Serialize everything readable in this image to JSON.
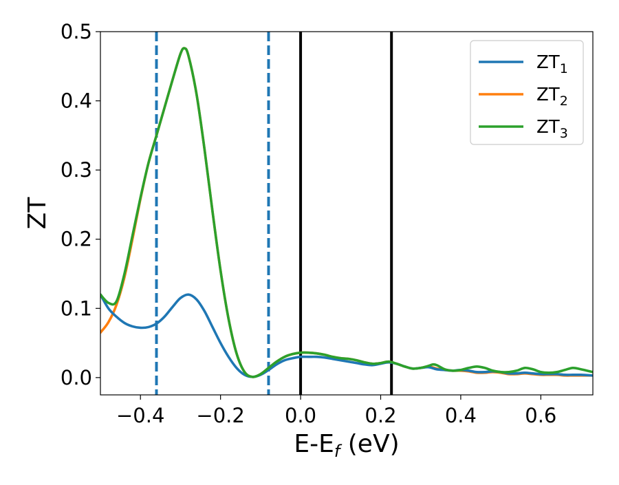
{
  "chart_data": {
    "type": "line",
    "xlabel": "E-E",
    "xlabel_sub": "f",
    "xlabel_unit": " (eV)",
    "ylabel": "ZT",
    "xlim": [
      -0.5,
      0.73
    ],
    "ylim": [
      -0.025,
      0.5
    ],
    "xticks": [
      -0.4,
      -0.2,
      0.0,
      0.2,
      0.4,
      0.6
    ],
    "xtick_labels": [
      "−0.4",
      "−0.2",
      "0.0",
      "0.2",
      "0.4",
      "0.6"
    ],
    "yticks": [
      0.0,
      0.1,
      0.2,
      0.3,
      0.4,
      0.5
    ],
    "ytick_labels": [
      "0.0",
      "0.1",
      "0.2",
      "0.3",
      "0.4",
      "0.5"
    ],
    "grid": false,
    "legend_position": "top-right",
    "vertical_lines": [
      {
        "x": -0.36,
        "style": "dashed",
        "color": "#1f77b4"
      },
      {
        "x": -0.08,
        "style": "dashed",
        "color": "#1f77b4"
      },
      {
        "x": 0.0,
        "style": "solid",
        "color": "#000000"
      },
      {
        "x": 0.227,
        "style": "solid",
        "color": "#000000"
      }
    ],
    "series": [
      {
        "name": "ZT",
        "name_sub": "1",
        "color": "#1f77b4",
        "x": [
          -0.5,
          -0.48,
          -0.46,
          -0.44,
          -0.42,
          -0.4,
          -0.38,
          -0.36,
          -0.34,
          -0.32,
          -0.3,
          -0.28,
          -0.26,
          -0.24,
          -0.22,
          -0.2,
          -0.18,
          -0.16,
          -0.14,
          -0.12,
          -0.1,
          -0.08,
          -0.06,
          -0.04,
          -0.02,
          0.0,
          0.02,
          0.04,
          0.06,
          0.08,
          0.1,
          0.12,
          0.14,
          0.16,
          0.18,
          0.2,
          0.22,
          0.24,
          0.26,
          0.28,
          0.3,
          0.32,
          0.34,
          0.36,
          0.38,
          0.4,
          0.42,
          0.44,
          0.46,
          0.48,
          0.5,
          0.52,
          0.54,
          0.56,
          0.58,
          0.6,
          0.62,
          0.64,
          0.66,
          0.68,
          0.7,
          0.73
        ],
        "y": [
          0.12,
          0.1,
          0.088,
          0.079,
          0.074,
          0.072,
          0.073,
          0.078,
          0.088,
          0.102,
          0.115,
          0.12,
          0.113,
          0.096,
          0.073,
          0.05,
          0.03,
          0.014,
          0.004,
          0.001,
          0.004,
          0.011,
          0.019,
          0.025,
          0.028,
          0.03,
          0.03,
          0.03,
          0.029,
          0.027,
          0.025,
          0.023,
          0.021,
          0.019,
          0.018,
          0.02,
          0.022,
          0.02,
          0.016,
          0.013,
          0.014,
          0.015,
          0.012,
          0.011,
          0.01,
          0.011,
          0.01,
          0.008,
          0.008,
          0.009,
          0.008,
          0.006,
          0.006,
          0.007,
          0.006,
          0.005,
          0.005,
          0.005,
          0.004,
          0.004,
          0.004,
          0.003
        ]
      },
      {
        "name": "ZT",
        "name_sub": "2",
        "color": "#ff7f0e",
        "x": [
          -0.5,
          -0.48,
          -0.46,
          -0.44,
          -0.42,
          -0.4,
          -0.38,
          -0.36,
          -0.34,
          -0.32,
          -0.3,
          -0.29,
          -0.28,
          -0.26,
          -0.24,
          -0.22,
          -0.2,
          -0.18,
          -0.16,
          -0.14,
          -0.12,
          -0.1,
          -0.08,
          -0.06,
          -0.04,
          -0.02,
          0.0,
          0.02,
          0.04,
          0.06,
          0.08,
          0.1,
          0.12,
          0.14,
          0.16,
          0.18,
          0.2,
          0.22,
          0.24,
          0.26,
          0.28,
          0.3,
          0.32,
          0.34,
          0.36,
          0.38,
          0.4,
          0.42,
          0.44,
          0.46,
          0.48,
          0.5,
          0.52,
          0.54,
          0.56,
          0.58,
          0.6,
          0.62,
          0.64,
          0.66,
          0.68,
          0.7,
          0.73
        ],
        "y": [
          0.065,
          0.08,
          0.105,
          0.145,
          0.2,
          0.258,
          0.31,
          0.35,
          0.39,
          0.43,
          0.468,
          0.476,
          0.465,
          0.41,
          0.33,
          0.24,
          0.155,
          0.085,
          0.035,
          0.008,
          0.001,
          0.005,
          0.014,
          0.023,
          0.03,
          0.034,
          0.036,
          0.036,
          0.035,
          0.033,
          0.03,
          0.028,
          0.027,
          0.025,
          0.022,
          0.02,
          0.021,
          0.023,
          0.02,
          0.016,
          0.013,
          0.014,
          0.016,
          0.013,
          0.011,
          0.01,
          0.01,
          0.009,
          0.007,
          0.007,
          0.008,
          0.007,
          0.005,
          0.005,
          0.006,
          0.005,
          0.004,
          0.004,
          0.004,
          0.003,
          0.003,
          0.003,
          0.003
        ]
      },
      {
        "name": "ZT",
        "name_sub": "3",
        "color": "#2ca02c",
        "x": [
          -0.5,
          -0.48,
          -0.46,
          -0.44,
          -0.42,
          -0.4,
          -0.38,
          -0.36,
          -0.34,
          -0.32,
          -0.3,
          -0.29,
          -0.28,
          -0.26,
          -0.24,
          -0.22,
          -0.2,
          -0.18,
          -0.16,
          -0.14,
          -0.12,
          -0.1,
          -0.08,
          -0.06,
          -0.04,
          -0.02,
          0.0,
          0.02,
          0.04,
          0.06,
          0.08,
          0.1,
          0.12,
          0.14,
          0.16,
          0.18,
          0.2,
          0.22,
          0.24,
          0.26,
          0.28,
          0.3,
          0.32,
          0.33,
          0.34,
          0.36,
          0.38,
          0.4,
          0.42,
          0.44,
          0.46,
          0.48,
          0.5,
          0.52,
          0.54,
          0.56,
          0.58,
          0.6,
          0.62,
          0.64,
          0.66,
          0.68,
          0.7,
          0.73
        ],
        "y": [
          0.12,
          0.108,
          0.11,
          0.15,
          0.205,
          0.26,
          0.31,
          0.35,
          0.39,
          0.43,
          0.468,
          0.476,
          0.465,
          0.41,
          0.33,
          0.24,
          0.155,
          0.085,
          0.035,
          0.008,
          0.001,
          0.005,
          0.014,
          0.023,
          0.03,
          0.034,
          0.036,
          0.036,
          0.035,
          0.033,
          0.03,
          0.028,
          0.027,
          0.025,
          0.022,
          0.02,
          0.021,
          0.023,
          0.02,
          0.016,
          0.013,
          0.014,
          0.017,
          0.019,
          0.018,
          0.012,
          0.01,
          0.011,
          0.014,
          0.016,
          0.014,
          0.01,
          0.008,
          0.008,
          0.01,
          0.014,
          0.012,
          0.008,
          0.007,
          0.008,
          0.011,
          0.014,
          0.012,
          0.008
        ]
      }
    ]
  }
}
